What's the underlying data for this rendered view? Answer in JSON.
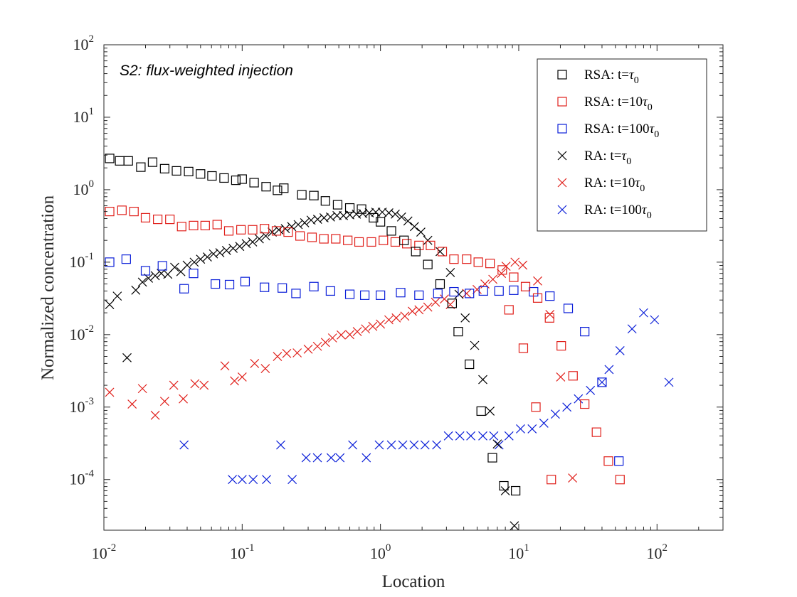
{
  "chart_data": {
    "type": "scatter",
    "title": "",
    "annotation": "S2: flux-weighted injection",
    "xlabel": "Location",
    "ylabel": "Normalized concentration",
    "xscale": "log",
    "yscale": "log",
    "xlim": [
      0.01,
      300
    ],
    "ylim": [
      2e-05,
      100
    ],
    "xticks": [
      {
        "base": "10",
        "exp": "-2",
        "value": 0.01
      },
      {
        "base": "10",
        "exp": "-1",
        "value": 0.1
      },
      {
        "base": "10",
        "exp": "0",
        "value": 1
      },
      {
        "base": "10",
        "exp": "1",
        "value": 10
      },
      {
        "base": "10",
        "exp": "2",
        "value": 100
      }
    ],
    "yticks": [
      {
        "base": "10",
        "exp": "-4",
        "value": 0.0001
      },
      {
        "base": "10",
        "exp": "-3",
        "value": 0.001
      },
      {
        "base": "10",
        "exp": "-2",
        "value": 0.01
      },
      {
        "base": "10",
        "exp": "-1",
        "value": 0.1
      },
      {
        "base": "10",
        "exp": "0",
        "value": 1
      },
      {
        "base": "10",
        "exp": "1",
        "value": 10
      },
      {
        "base": "10",
        "exp": "2",
        "value": 100
      }
    ],
    "grid": false,
    "legend_position": "top-right",
    "series": [
      {
        "name": "RSA: t=τ0",
        "legend": {
          "pre": "RSA: t=",
          "sym": "τ",
          "sub": "0"
        },
        "marker": "square",
        "color": "#000000",
        "points": [
          [
            0.011,
            2.7
          ],
          [
            0.013,
            2.5
          ],
          [
            0.015,
            2.5
          ],
          [
            0.0185,
            2.05
          ],
          [
            0.0225,
            2.4
          ],
          [
            0.0275,
            1.95
          ],
          [
            0.0335,
            1.82
          ],
          [
            0.041,
            1.78
          ],
          [
            0.05,
            1.65
          ],
          [
            0.0605,
            1.55
          ],
          [
            0.074,
            1.45
          ],
          [
            0.09,
            1.35
          ],
          [
            0.1,
            1.4
          ],
          [
            0.122,
            1.25
          ],
          [
            0.149,
            1.1
          ],
          [
            0.18,
            0.98
          ],
          [
            0.2,
            1.05
          ],
          [
            0.27,
            0.85
          ],
          [
            0.33,
            0.83
          ],
          [
            0.4,
            0.7
          ],
          [
            0.49,
            0.62
          ],
          [
            0.6,
            0.56
          ],
          [
            0.73,
            0.54
          ],
          [
            0.89,
            0.41
          ],
          [
            1.0,
            0.36
          ],
          [
            1.2,
            0.27
          ],
          [
            1.48,
            0.2
          ],
          [
            1.8,
            0.14
          ],
          [
            2.2,
            0.093
          ],
          [
            2.7,
            0.05
          ],
          [
            3.3,
            0.027
          ],
          [
            3.65,
            0.011
          ],
          [
            4.4,
            0.0039
          ],
          [
            5.35,
            0.00088
          ],
          [
            6.45,
            0.0002
          ],
          [
            7.8,
            8.2e-05
          ],
          [
            9.5,
            7e-05
          ]
        ]
      },
      {
        "name": "RSA: t=10τ0",
        "legend": {
          "pre": "RSA: t=10",
          "sym": "τ",
          "sub": "0"
        },
        "marker": "square",
        "color": "#e0201b",
        "points": [
          [
            0.011,
            0.5
          ],
          [
            0.0135,
            0.52
          ],
          [
            0.0165,
            0.5
          ],
          [
            0.02,
            0.41
          ],
          [
            0.0245,
            0.39
          ],
          [
            0.03,
            0.39
          ],
          [
            0.0365,
            0.31
          ],
          [
            0.0445,
            0.32
          ],
          [
            0.054,
            0.32
          ],
          [
            0.066,
            0.33
          ],
          [
            0.08,
            0.27
          ],
          [
            0.098,
            0.28
          ],
          [
            0.119,
            0.28
          ],
          [
            0.145,
            0.29
          ],
          [
            0.177,
            0.27
          ],
          [
            0.215,
            0.26
          ],
          [
            0.262,
            0.23
          ],
          [
            0.32,
            0.22
          ],
          [
            0.39,
            0.21
          ],
          [
            0.475,
            0.21
          ],
          [
            0.58,
            0.2
          ],
          [
            0.7,
            0.19
          ],
          [
            0.86,
            0.19
          ],
          [
            1.05,
            0.2
          ],
          [
            1.28,
            0.19
          ],
          [
            1.55,
            0.18
          ],
          [
            1.9,
            0.17
          ],
          [
            2.3,
            0.17
          ],
          [
            2.8,
            0.14
          ],
          [
            3.4,
            0.11
          ],
          [
            4.2,
            0.11
          ],
          [
            5.1,
            0.1
          ],
          [
            6.2,
            0.096
          ],
          [
            7.6,
            0.078
          ],
          [
            9.2,
            0.062
          ],
          [
            11.2,
            0.046
          ],
          [
            13.7,
            0.032
          ],
          [
            16.7,
            0.017
          ],
          [
            20.3,
            0.007
          ],
          [
            24.7,
            0.0027
          ],
          [
            30,
            0.0011
          ],
          [
            36.5,
            0.00045
          ],
          [
            44.5,
            0.00018
          ],
          [
            54,
            0.0001
          ],
          [
            8.5,
            0.022
          ],
          [
            10.8,
            0.0065
          ],
          [
            13.3,
            0.001
          ],
          [
            17.2,
            0.0001
          ]
        ]
      },
      {
        "name": "RSA: t=100τ0",
        "legend": {
          "pre": "RSA: t=100",
          "sym": "τ",
          "sub": "0"
        },
        "marker": "square",
        "color": "#0b1fd8",
        "points": [
          [
            0.011,
            0.1
          ],
          [
            0.0145,
            0.11
          ],
          [
            0.02,
            0.076
          ],
          [
            0.0265,
            0.089
          ],
          [
            0.038,
            0.043
          ],
          [
            0.0445,
            0.07
          ],
          [
            0.064,
            0.05
          ],
          [
            0.081,
            0.049
          ],
          [
            0.105,
            0.054
          ],
          [
            0.145,
            0.045
          ],
          [
            0.195,
            0.044
          ],
          [
            0.245,
            0.037
          ],
          [
            0.33,
            0.046
          ],
          [
            0.435,
            0.04
          ],
          [
            0.6,
            0.036
          ],
          [
            0.77,
            0.035
          ],
          [
            1.0,
            0.035
          ],
          [
            1.4,
            0.038
          ],
          [
            1.9,
            0.035
          ],
          [
            2.6,
            0.037
          ],
          [
            3.4,
            0.039
          ],
          [
            4.4,
            0.037
          ],
          [
            5.55,
            0.04
          ],
          [
            7.2,
            0.04
          ],
          [
            9.2,
            0.041
          ],
          [
            12.8,
            0.039
          ],
          [
            16.8,
            0.034
          ],
          [
            22.8,
            0.023
          ],
          [
            30,
            0.011
          ],
          [
            40,
            0.0022
          ],
          [
            53,
            0.00018
          ]
        ]
      },
      {
        "name": "RA: t=τ0",
        "legend": {
          "pre": "RA: t=",
          "sym": "τ",
          "sub": "0"
        },
        "marker": "x",
        "color": "#000000",
        "points": [
          [
            0.011,
            0.026
          ],
          [
            0.0125,
            0.034
          ],
          [
            0.0147,
            0.0048
          ],
          [
            0.017,
            0.041
          ],
          [
            0.019,
            0.053
          ],
          [
            0.021,
            0.06
          ],
          [
            0.0235,
            0.065
          ],
          [
            0.026,
            0.07
          ],
          [
            0.029,
            0.068
          ],
          [
            0.0325,
            0.085
          ],
          [
            0.036,
            0.074
          ],
          [
            0.04,
            0.091
          ],
          [
            0.045,
            0.1
          ],
          [
            0.05,
            0.11
          ],
          [
            0.056,
            0.118
          ],
          [
            0.062,
            0.13
          ],
          [
            0.069,
            0.135
          ],
          [
            0.077,
            0.145
          ],
          [
            0.086,
            0.155
          ],
          [
            0.096,
            0.165
          ],
          [
            0.107,
            0.18
          ],
          [
            0.119,
            0.19
          ],
          [
            0.133,
            0.21
          ],
          [
            0.148,
            0.23
          ],
          [
            0.165,
            0.26
          ],
          [
            0.184,
            0.28
          ],
          [
            0.205,
            0.29
          ],
          [
            0.228,
            0.31
          ],
          [
            0.254,
            0.33
          ],
          [
            0.283,
            0.35
          ],
          [
            0.315,
            0.38
          ],
          [
            0.351,
            0.39
          ],
          [
            0.391,
            0.41
          ],
          [
            0.435,
            0.42
          ],
          [
            0.485,
            0.44
          ],
          [
            0.54,
            0.44
          ],
          [
            0.6,
            0.45
          ],
          [
            0.67,
            0.46
          ],
          [
            0.745,
            0.47
          ],
          [
            0.83,
            0.48
          ],
          [
            0.925,
            0.49
          ],
          [
            1.03,
            0.49
          ],
          [
            1.15,
            0.48
          ],
          [
            1.28,
            0.46
          ],
          [
            1.42,
            0.42
          ],
          [
            1.58,
            0.37
          ],
          [
            1.76,
            0.31
          ],
          [
            1.96,
            0.26
          ],
          [
            2.2,
            0.2
          ],
          [
            2.7,
            0.14
          ],
          [
            3.2,
            0.072
          ],
          [
            3.7,
            0.036
          ],
          [
            4.1,
            0.017
          ],
          [
            4.8,
            0.0071
          ],
          [
            5.5,
            0.0024
          ],
          [
            6.2,
            0.00088
          ],
          [
            7.0,
            0.00031
          ],
          [
            8.0,
            7e-05
          ],
          [
            9.3,
            2.3e-05
          ]
        ]
      },
      {
        "name": "RA: t=10τ0",
        "legend": {
          "pre": "RA: t=10",
          "sym": "τ",
          "sub": "0"
        },
        "marker": "x",
        "color": "#e0201b",
        "points": [
          [
            0.011,
            0.0016
          ],
          [
            0.016,
            0.0011
          ],
          [
            0.019,
            0.0018
          ],
          [
            0.0235,
            0.00077
          ],
          [
            0.0275,
            0.0012
          ],
          [
            0.032,
            0.002
          ],
          [
            0.0375,
            0.0013
          ],
          [
            0.0455,
            0.0021
          ],
          [
            0.053,
            0.002
          ],
          [
            0.075,
            0.0037
          ],
          [
            0.088,
            0.0023
          ],
          [
            0.1,
            0.0026
          ],
          [
            0.123,
            0.004
          ],
          [
            0.147,
            0.0034
          ],
          [
            0.18,
            0.005
          ],
          [
            0.21,
            0.0055
          ],
          [
            0.25,
            0.0056
          ],
          [
            0.3,
            0.0063
          ],
          [
            0.35,
            0.0069
          ],
          [
            0.4,
            0.0078
          ],
          [
            0.45,
            0.009
          ],
          [
            0.52,
            0.0099
          ],
          [
            0.6,
            0.01
          ],
          [
            0.68,
            0.011
          ],
          [
            0.78,
            0.012
          ],
          [
            0.88,
            0.013
          ],
          [
            1.0,
            0.014
          ],
          [
            1.15,
            0.016
          ],
          [
            1.3,
            0.017
          ],
          [
            1.5,
            0.018
          ],
          [
            1.7,
            0.021
          ],
          [
            1.9,
            0.022
          ],
          [
            2.2,
            0.024
          ],
          [
            2.5,
            0.028
          ],
          [
            2.9,
            0.031
          ],
          [
            3.2,
            0.026
          ],
          [
            4.2,
            0.037
          ],
          [
            5.0,
            0.042
          ],
          [
            5.7,
            0.05
          ],
          [
            6.5,
            0.058
          ],
          [
            7.5,
            0.07
          ],
          [
            8.1,
            0.088
          ],
          [
            9.4,
            0.1
          ],
          [
            10.7,
            0.091
          ],
          [
            13.7,
            0.055
          ],
          [
            16.8,
            0.019
          ],
          [
            20.1,
            0.0026
          ],
          [
            24.5,
            0.000105
          ]
        ]
      },
      {
        "name": "RA: t=100τ0",
        "legend": {
          "pre": "RA: t=100",
          "sym": "τ",
          "sub": "0"
        },
        "marker": "x",
        "color": "#0b1fd8",
        "points": [
          [
            0.038,
            0.0003
          ],
          [
            0.085,
            0.0001
          ],
          [
            0.1,
            0.0001
          ],
          [
            0.12,
            0.0001
          ],
          [
            0.15,
            0.0001
          ],
          [
            0.19,
            0.0003
          ],
          [
            0.23,
            0.0001
          ],
          [
            0.29,
            0.0002
          ],
          [
            0.35,
            0.0002
          ],
          [
            0.44,
            0.0002
          ],
          [
            0.51,
            0.0002
          ],
          [
            0.63,
            0.0003
          ],
          [
            0.79,
            0.0002
          ],
          [
            0.98,
            0.0003
          ],
          [
            1.2,
            0.0003
          ],
          [
            1.45,
            0.0003
          ],
          [
            1.75,
            0.0003
          ],
          [
            2.1,
            0.0003
          ],
          [
            2.55,
            0.0003
          ],
          [
            3.1,
            0.0004
          ],
          [
            3.75,
            0.0004
          ],
          [
            4.5,
            0.0004
          ],
          [
            5.5,
            0.0004
          ],
          [
            6.6,
            0.0004
          ],
          [
            7.2,
            0.0003
          ],
          [
            8.5,
            0.0004
          ],
          [
            10.3,
            0.0005
          ],
          [
            12.5,
            0.0005
          ],
          [
            15.2,
            0.0006
          ],
          [
            18.4,
            0.0008
          ],
          [
            22.3,
            0.001
          ],
          [
            27,
            0.0013
          ],
          [
            33,
            0.0017
          ],
          [
            40,
            0.0022
          ],
          [
            45,
            0.0033
          ],
          [
            54,
            0.006
          ],
          [
            66,
            0.012
          ],
          [
            80,
            0.02
          ],
          [
            96,
            0.016
          ],
          [
            122,
            0.0022
          ]
        ]
      }
    ]
  }
}
